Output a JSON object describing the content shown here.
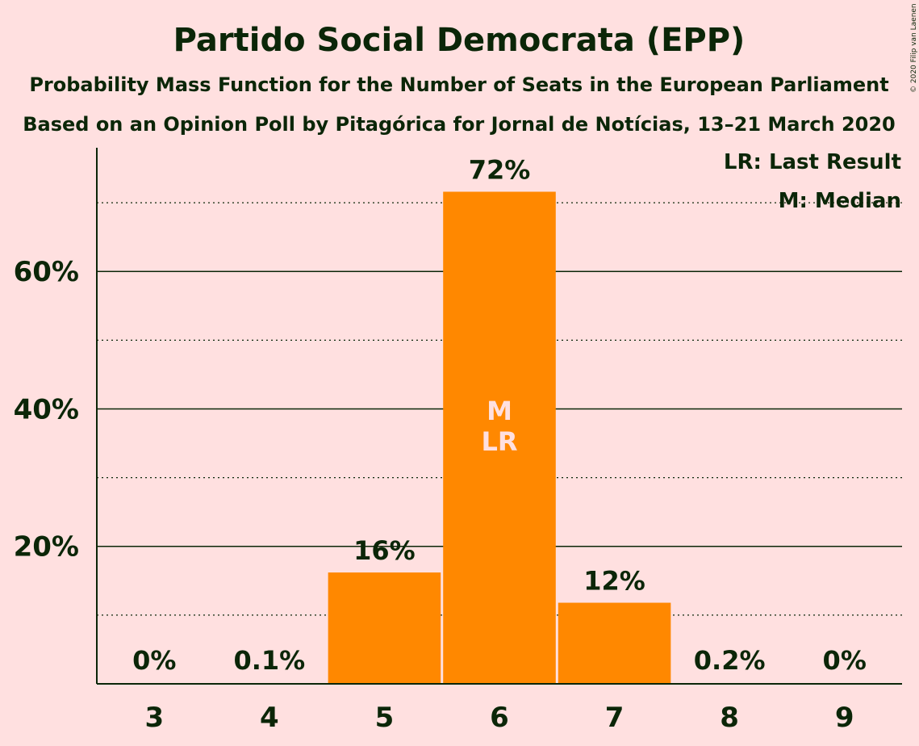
{
  "chart_data": {
    "type": "bar",
    "title": "Partido Social Democrata (EPP)",
    "subtitle": "Probability Mass Function for the Number of Seats in the European Parliament",
    "subtitle2": "Based on an Opinion Poll by Pitagórica for Jornal de Notícias, 13–21 March 2020",
    "copyright": "© 2020 Filip van Laenen",
    "categories": [
      "3",
      "4",
      "5",
      "6",
      "7",
      "8",
      "9"
    ],
    "values": [
      0,
      0.1,
      16.2,
      71.6,
      11.8,
      0.2,
      0
    ],
    "labels": [
      "0%",
      "0.1%",
      "16%",
      "72%",
      "12%",
      "0.2%",
      "0%"
    ],
    "ylim": [
      0,
      78
    ],
    "yticks": [
      {
        "value": 20,
        "label": "20%"
      },
      {
        "value": 40,
        "label": "40%"
      },
      {
        "value": 60,
        "label": "60%"
      }
    ],
    "minor_gridlines": [
      10,
      30,
      50,
      70
    ],
    "bar_color": "#ff8800",
    "median_index": 3,
    "last_result_index": 3,
    "median_mark": "M",
    "last_result_mark": "LR",
    "legend": [
      "LR: Last Result",
      "M: Median"
    ],
    "legend_position": "top-right"
  }
}
